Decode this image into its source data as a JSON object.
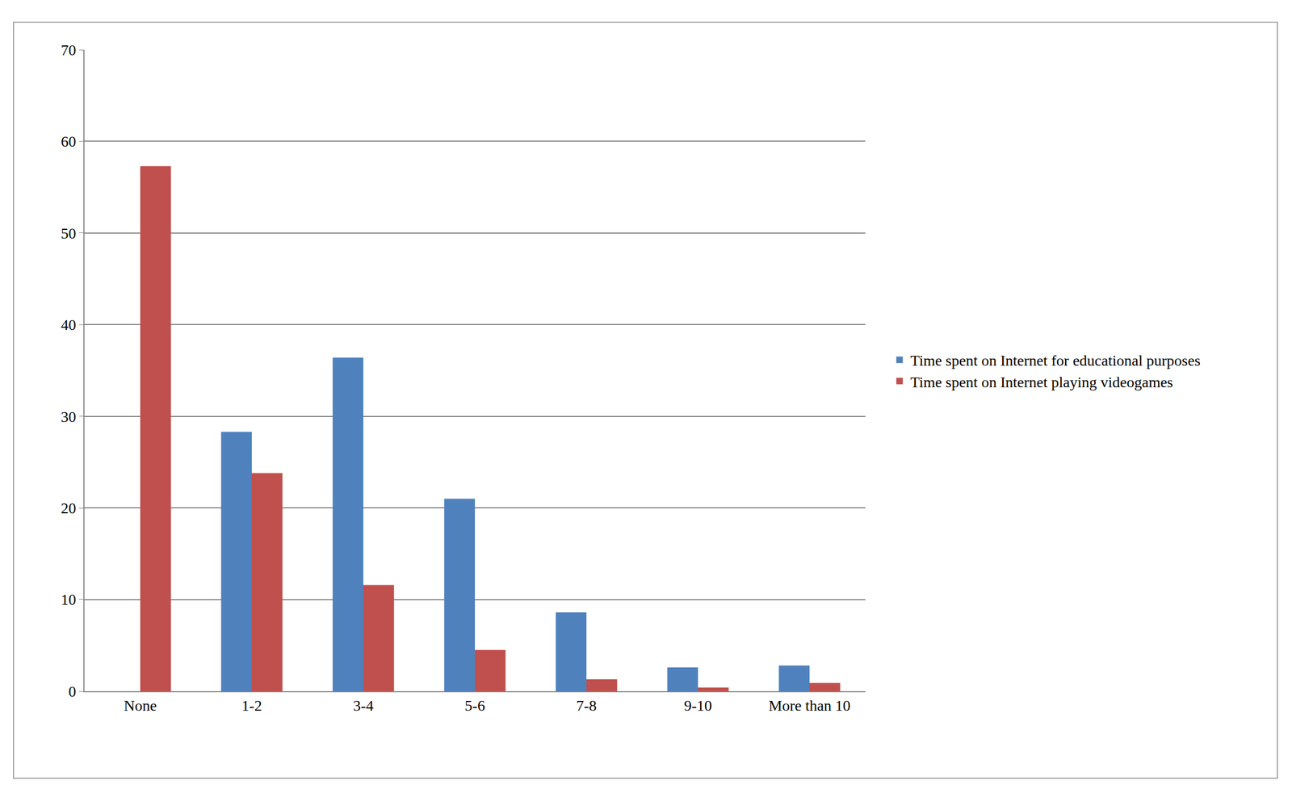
{
  "chart_data": {
    "type": "bar",
    "categories": [
      "None",
      "1-2",
      "3-4",
      "5-6",
      "7-8",
      "9-10",
      "More than 10"
    ],
    "series": [
      {
        "name": "Time spent on Internet for educational purposes",
        "color": "#4f81bd",
        "values": [
          0,
          28.3,
          36.4,
          21.0,
          8.6,
          2.6,
          2.8
        ]
      },
      {
        "name": "Time spent on Internet playing videogames",
        "color": "#c0504d",
        "values": [
          57.3,
          23.8,
          11.6,
          4.5,
          1.3,
          0.4,
          0.9
        ]
      }
    ],
    "ylim": [
      0,
      70
    ],
    "yticks": [
      0,
      10,
      20,
      30,
      40,
      50,
      60,
      70
    ],
    "grid": true,
    "legend": "right"
  }
}
